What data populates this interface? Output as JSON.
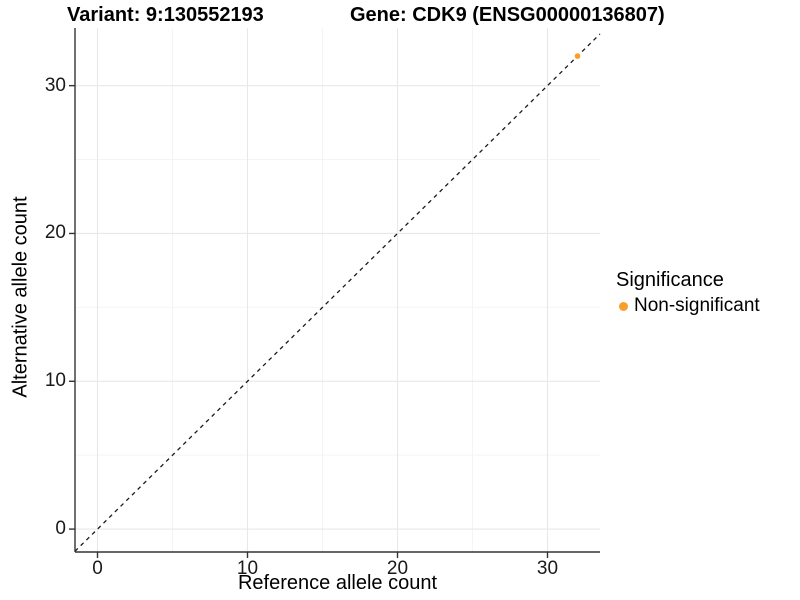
{
  "page": {
    "background": "#ffffff"
  },
  "titles": {
    "left": "Variant: 9:130552193",
    "right": "Gene: CDK9 (ENSG00000136807)"
  },
  "chart_data": {
    "type": "scatter",
    "title": "Variant: 9:130552193 | Gene: CDK9 (ENSG00000136807)",
    "xlabel": "Reference allele count",
    "ylabel": "Alternative allele count",
    "xlim": [
      -1.5,
      33.5
    ],
    "ylim": [
      -1.55,
      33.9
    ],
    "xticks": [
      0,
      10,
      20,
      30
    ],
    "yticks": [
      0,
      10,
      20,
      30
    ],
    "minor_xticks": [
      5,
      15,
      25
    ],
    "minor_yticks": [
      5,
      15,
      25
    ],
    "grid": "major+minor",
    "abline": {
      "slope": 1,
      "intercept": 0,
      "style": "dashed",
      "color": "#1a1a1a"
    },
    "series": [
      {
        "name": "Non-significant",
        "color": "#FA9E2B",
        "points": [
          {
            "x": 32,
            "y": 32
          }
        ]
      }
    ],
    "legend": {
      "title": "Significance",
      "position": "right",
      "items": [
        {
          "label": "Non-significant",
          "color": "#FA9E2B"
        }
      ]
    },
    "colors": {
      "grid_major": "#e8e8e8",
      "grid_minor": "#f4f4f4",
      "axis_line": "#333333",
      "tick_mark": "#333333",
      "point": "#FA9E2B"
    }
  }
}
